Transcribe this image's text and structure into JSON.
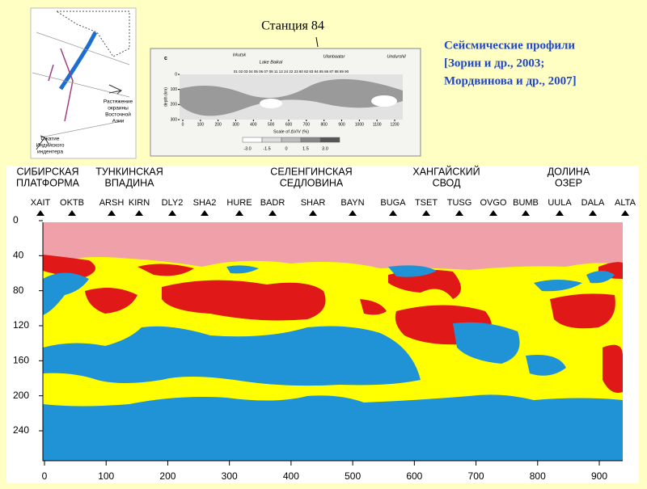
{
  "header": {
    "station_title": "Станция 84",
    "citation": [
      "Сейсмические профили",
      "[Зорин и др., 2003;",
      "Мордвинова и др., 2007]"
    ]
  },
  "map": {
    "extension_label": [
      "Растяжение",
      "окраины",
      "Восточной",
      "Азии"
    ],
    "compression_label": [
      "Сжатие",
      "Индийского",
      "индентера"
    ]
  },
  "inset": {
    "panel": "c",
    "places": [
      "Irkutsk",
      "Lake Baikal",
      "Ulanbaatar",
      "Undurshil"
    ],
    "stations": "01 02 03 04 05 06 07 08 11 12 24 22 23 80 82 83 84 85 86 87 88 89 90",
    "y_label": "depth (km)",
    "yticks": [
      0,
      100,
      200,
      300
    ],
    "xticks": [
      0,
      100,
      200,
      300,
      400,
      500,
      600,
      700,
      800,
      900,
      1000,
      1100,
      1200
    ],
    "scale_label": "Scale of ΔV/V (%)",
    "scale": [
      "-3.0",
      "-1.5",
      "0",
      "1.5",
      "3.0"
    ]
  },
  "profile": {
    "regions": [
      [
        "СИБИРСКАЯ",
        "ПЛАТФОРМА"
      ],
      [
        "ТУНКИНСКАЯ",
        "ВПАДИНА"
      ],
      [
        "СЕЛЕНГИНСКАЯ",
        "СЕДЛОВИНА"
      ],
      [
        "ХАНГАЙСКИЙ",
        "СВОД"
      ],
      [
        "ДОЛИНА",
        "ОЗЕР"
      ]
    ],
    "stations": [
      "XAIT",
      "OKTB",
      "ARSH",
      "KIRN",
      "DLY2",
      "SHA2",
      "HURE",
      "BADR",
      "SHAR",
      "BAYN",
      "BUGA",
      "TSET",
      "TUSG",
      "OVGO",
      "BUMB",
      "UULA",
      "DALA",
      "ALTA"
    ],
    "yticks": [
      0,
      40,
      80,
      120,
      160,
      200,
      240
    ],
    "xticks": [
      0,
      100,
      200,
      300,
      400,
      500,
      600,
      700,
      800,
      900
    ]
  }
}
